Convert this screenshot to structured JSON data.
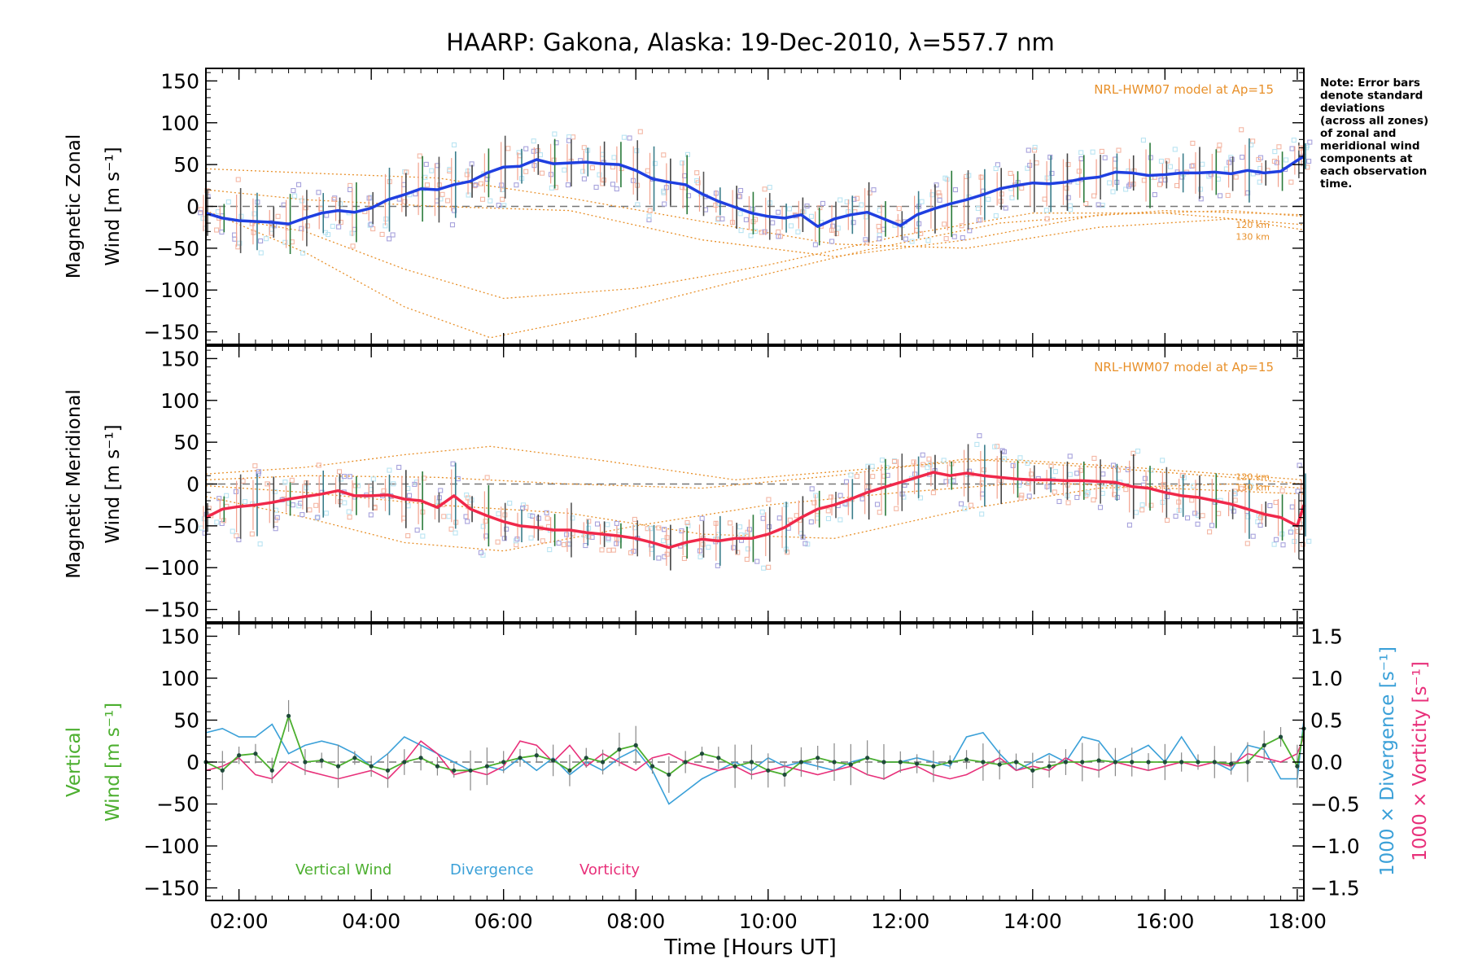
{
  "title": "HAARP: Gakona,  Alaska: 19-Dec-2010, λ=557.7 nm",
  "note_lines": [
    "Note: Error bars",
    "denote standard",
    "deviations",
    "(across all zones)",
    "of zonal and",
    "meridional wind",
    "components at",
    "each observation",
    "time."
  ],
  "model_label": "NRL-HWM07 model at Ap=15",
  "model_alt_labels": [
    "120 km",
    "130 km"
  ],
  "xlabel": "Time [Hours UT]",
  "colors": {
    "zonal": "#1f3fe0",
    "meridional": "#f0284a",
    "vertical": "#4caf2f",
    "divergence": "#3aa0d8",
    "vorticity": "#e8307a",
    "model": "#e8902a",
    "scatter": "#a7a2dc"
  },
  "legend": {
    "vertical": "Vertical Wind",
    "divergence": "Divergence",
    "vorticity": "Vorticity"
  },
  "chart_data": [
    {
      "type": "line",
      "panel": "zonal",
      "ylabel_top": "Magnetic Zonal",
      "ylabel_bottom": "Wind [m s⁻¹]",
      "x_ticks": [
        "02:00",
        "04:00",
        "06:00",
        "08:00",
        "10:00",
        "12:00",
        "14:00",
        "16:00",
        "18:00"
      ],
      "xlim_hours": [
        1.5,
        18.1
      ],
      "ylim": [
        -165,
        165
      ],
      "y_ticks": [
        150,
        100,
        50,
        0,
        -50,
        -100,
        -150
      ],
      "series": [
        {
          "name": "",
          "x_hours": [
            1.5,
            1.75,
            2.0,
            2.25,
            2.5,
            2.75,
            3.0,
            3.25,
            3.5,
            3.75,
            4.0,
            4.25,
            4.5,
            4.75,
            5.0,
            5.25,
            5.5,
            5.75,
            6.0,
            6.25,
            6.5,
            6.75,
            7.0,
            7.25,
            7.5,
            7.75,
            8.0,
            8.25,
            8.5,
            8.75,
            9.0,
            9.25,
            9.5,
            9.75,
            10.0,
            10.25,
            10.5,
            10.75,
            11.0,
            11.25,
            11.5,
            11.75,
            12.0,
            12.25,
            12.5,
            12.75,
            13.0,
            13.25,
            13.5,
            13.75,
            14.0,
            14.25,
            14.5,
            14.75,
            15.0,
            15.25,
            15.5,
            15.75,
            16.0,
            16.25,
            16.5,
            16.75,
            17.0,
            17.25,
            17.5,
            17.75,
            18.0,
            18.1
          ],
          "y": [
            -8,
            -14,
            -17,
            -18,
            -19,
            -21,
            -14,
            -8,
            -5,
            -7,
            -2,
            8,
            14,
            21,
            20,
            26,
            30,
            40,
            47,
            48,
            56,
            51,
            52,
            53,
            51,
            50,
            43,
            33,
            29,
            26,
            15,
            6,
            -1,
            -8,
            -12,
            -14,
            -10,
            -24,
            -15,
            -10,
            -7,
            -15,
            -23,
            -10,
            -3,
            3,
            8,
            14,
            21,
            25,
            28,
            27,
            29,
            33,
            35,
            41,
            40,
            37,
            38,
            40,
            40,
            41,
            39,
            43,
            40,
            42,
            55,
            60
          ]
        }
      ]
    },
    {
      "type": "line",
      "panel": "meridional",
      "ylabel_top": "Magnetic Meridional",
      "ylabel_bottom": "Wind [m s⁻¹]",
      "x_ticks": [
        "02:00",
        "04:00",
        "06:00",
        "08:00",
        "10:00",
        "12:00",
        "14:00",
        "16:00",
        "18:00"
      ],
      "xlim_hours": [
        1.5,
        18.1
      ],
      "ylim": [
        -165,
        165
      ],
      "y_ticks": [
        150,
        100,
        50,
        0,
        -50,
        -100,
        -150
      ],
      "series": [
        {
          "name": "",
          "x_hours": [
            1.5,
            1.75,
            2.0,
            2.25,
            2.5,
            2.75,
            3.0,
            3.25,
            3.5,
            3.75,
            4.0,
            4.25,
            4.5,
            4.75,
            5.0,
            5.25,
            5.5,
            5.75,
            6.0,
            6.25,
            6.5,
            6.75,
            7.0,
            7.25,
            7.5,
            7.75,
            8.0,
            8.25,
            8.5,
            8.75,
            9.0,
            9.25,
            9.5,
            9.75,
            10.0,
            10.25,
            10.5,
            10.75,
            11.0,
            11.25,
            11.5,
            11.75,
            12.0,
            12.25,
            12.5,
            12.75,
            13.0,
            13.25,
            13.5,
            13.75,
            14.0,
            14.25,
            14.5,
            14.75,
            15.0,
            15.25,
            15.5,
            15.75,
            16.0,
            16.25,
            16.5,
            16.75,
            17.0,
            17.25,
            17.5,
            17.75,
            18.0,
            18.1
          ],
          "y": [
            -40,
            -30,
            -27,
            -25,
            -22,
            -18,
            -15,
            -12,
            -8,
            -14,
            -14,
            -13,
            -18,
            -20,
            -28,
            -14,
            -30,
            -38,
            -45,
            -50,
            -52,
            -55,
            -55,
            -58,
            -60,
            -62,
            -65,
            -70,
            -76,
            -70,
            -66,
            -68,
            -65,
            -65,
            -60,
            -52,
            -40,
            -30,
            -25,
            -18,
            -10,
            -4,
            2,
            8,
            14,
            10,
            13,
            10,
            8,
            6,
            5,
            5,
            4,
            4,
            3,
            2,
            -3,
            -5,
            -10,
            -14,
            -16,
            -20,
            -24,
            -30,
            -36,
            -40,
            -50,
            -25
          ]
        }
      ]
    },
    {
      "type": "line",
      "panel": "vertical",
      "ylabel_top": "Vertical",
      "ylabel_bottom": "Wind [m s⁻¹]",
      "right_ylabel_div": "1000 × Divergence [s⁻¹]",
      "right_ylabel_vort": "1000 × Vorticity [s⁻¹]",
      "x_ticks": [
        "02:00",
        "04:00",
        "06:00",
        "08:00",
        "10:00",
        "12:00",
        "14:00",
        "16:00",
        "18:00"
      ],
      "xlim_hours": [
        1.5,
        18.1
      ],
      "ylim": [
        -165,
        165
      ],
      "y_ticks": [
        150,
        100,
        50,
        0,
        -50,
        -100,
        -150
      ],
      "right_ylim": [
        -1.65,
        1.65
      ],
      "right_y_ticks": [
        "1.5",
        "1.0",
        "0.5",
        "0.0",
        "−0.5",
        "−1.0",
        "−1.5"
      ],
      "series": [
        {
          "name": "Vertical Wind",
          "axis": "left",
          "x_hours": [
            1.5,
            1.75,
            2.0,
            2.25,
            2.5,
            2.75,
            3.0,
            3.25,
            3.5,
            3.75,
            4.0,
            4.25,
            4.5,
            4.75,
            5.0,
            5.25,
            5.5,
            5.75,
            6.0,
            6.25,
            6.5,
            6.75,
            7.0,
            7.25,
            7.5,
            7.75,
            8.0,
            8.25,
            8.5,
            8.75,
            9.0,
            9.25,
            9.5,
            9.75,
            10.0,
            10.25,
            10.5,
            10.75,
            11.0,
            11.25,
            11.5,
            11.75,
            12.0,
            12.25,
            12.5,
            12.75,
            13.0,
            13.25,
            13.5,
            13.75,
            14.0,
            14.25,
            14.5,
            14.75,
            15.0,
            15.25,
            15.5,
            15.75,
            16.0,
            16.25,
            16.5,
            16.75,
            17.0,
            17.25,
            17.5,
            17.75,
            18.0,
            18.1
          ],
          "y": [
            0,
            -10,
            8,
            10,
            -10,
            55,
            0,
            2,
            -5,
            5,
            -5,
            -10,
            0,
            5,
            -5,
            -10,
            -10,
            -5,
            0,
            5,
            8,
            2,
            -10,
            5,
            0,
            15,
            20,
            -5,
            -15,
            0,
            10,
            5,
            -5,
            0,
            -10,
            -15,
            0,
            5,
            0,
            -3,
            5,
            0,
            0,
            -2,
            -5,
            0,
            3,
            0,
            -3,
            0,
            -10,
            -5,
            0,
            0,
            2,
            0,
            0,
            0,
            0,
            0,
            0,
            0,
            -2,
            0,
            20,
            30,
            -5,
            40
          ]
        },
        {
          "name": "Divergence",
          "axis": "right",
          "x_hours": [
            1.5,
            1.75,
            2.0,
            2.25,
            2.5,
            2.75,
            3.0,
            3.25,
            3.5,
            3.75,
            4.0,
            4.25,
            4.5,
            4.75,
            5.0,
            5.25,
            5.5,
            5.75,
            6.0,
            6.25,
            6.5,
            6.75,
            7.0,
            7.25,
            7.5,
            7.75,
            8.0,
            8.25,
            8.5,
            8.75,
            9.0,
            9.25,
            9.5,
            9.75,
            10.0,
            10.25,
            10.5,
            10.75,
            11.0,
            11.25,
            11.5,
            11.75,
            12.0,
            12.25,
            12.5,
            12.75,
            13.0,
            13.25,
            13.5,
            13.75,
            14.0,
            14.25,
            14.5,
            14.75,
            15.0,
            15.25,
            15.5,
            15.75,
            16.0,
            16.25,
            16.5,
            16.75,
            17.0,
            17.25,
            17.5,
            17.75,
            18.0,
            18.1
          ],
          "y": [
            0.35,
            0.4,
            0.3,
            0.3,
            0.45,
            0.1,
            0.2,
            0.25,
            0.2,
            0.1,
            -0.05,
            0.1,
            0.3,
            0.2,
            0.1,
            0.0,
            -0.1,
            -0.05,
            -0.1,
            0.05,
            -0.1,
            0.05,
            -0.15,
            0.0,
            -0.1,
            0.05,
            0.15,
            -0.1,
            -0.5,
            -0.35,
            -0.2,
            -0.1,
            0.0,
            -0.1,
            0.05,
            -0.05,
            0.0,
            -0.05,
            -0.1,
            0.0,
            0.05,
            0.0,
            0.0,
            0.05,
            0.0,
            -0.05,
            0.3,
            0.35,
            0.1,
            -0.1,
            0.0,
            0.1,
            0.0,
            0.3,
            0.25,
            0.0,
            0.1,
            0.2,
            0.0,
            0.3,
            0.0,
            0.0,
            -0.1,
            0.2,
            0.15,
            -0.2,
            -0.2,
            0.5
          ]
        },
        {
          "name": "Vorticity",
          "axis": "right",
          "x_hours": [
            1.5,
            1.75,
            2.0,
            2.25,
            2.5,
            2.75,
            3.0,
            3.25,
            3.5,
            3.75,
            4.0,
            4.25,
            4.5,
            4.75,
            5.0,
            5.25,
            5.5,
            5.75,
            6.0,
            6.25,
            6.5,
            6.75,
            7.0,
            7.25,
            7.5,
            7.75,
            8.0,
            8.25,
            8.5,
            8.75,
            9.0,
            9.25,
            9.5,
            9.75,
            10.0,
            10.25,
            10.5,
            10.75,
            11.0,
            11.25,
            11.5,
            11.75,
            12.0,
            12.25,
            12.5,
            12.75,
            13.0,
            13.25,
            13.5,
            13.75,
            14.0,
            14.25,
            14.5,
            14.75,
            15.0,
            15.25,
            15.5,
            15.75,
            16.0,
            16.25,
            16.5,
            16.75,
            17.0,
            17.25,
            17.5,
            17.75,
            18.0,
            18.1
          ],
          "y": [
            -0.1,
            -0.05,
            0.05,
            -0.15,
            -0.2,
            0.0,
            -0.1,
            -0.15,
            -0.2,
            -0.15,
            -0.1,
            -0.2,
            0.0,
            0.25,
            0.1,
            -0.15,
            -0.1,
            -0.15,
            -0.05,
            0.25,
            0.2,
            0.0,
            0.2,
            -0.05,
            0.1,
            0.0,
            -0.1,
            0.05,
            0.1,
            0.0,
            -0.05,
            -0.1,
            -0.05,
            -0.15,
            -0.1,
            -0.05,
            -0.1,
            -0.15,
            -0.1,
            -0.05,
            -0.15,
            -0.2,
            -0.1,
            -0.05,
            -0.15,
            -0.2,
            -0.15,
            -0.05,
            0.05,
            -0.1,
            -0.05,
            -0.1,
            0.05,
            -0.05,
            -0.1,
            0.0,
            -0.05,
            -0.1,
            -0.05,
            0.0,
            -0.05,
            0.0,
            -0.05,
            0.1,
            0.05,
            0.0,
            0.1,
            0.3
          ]
        }
      ]
    }
  ]
}
